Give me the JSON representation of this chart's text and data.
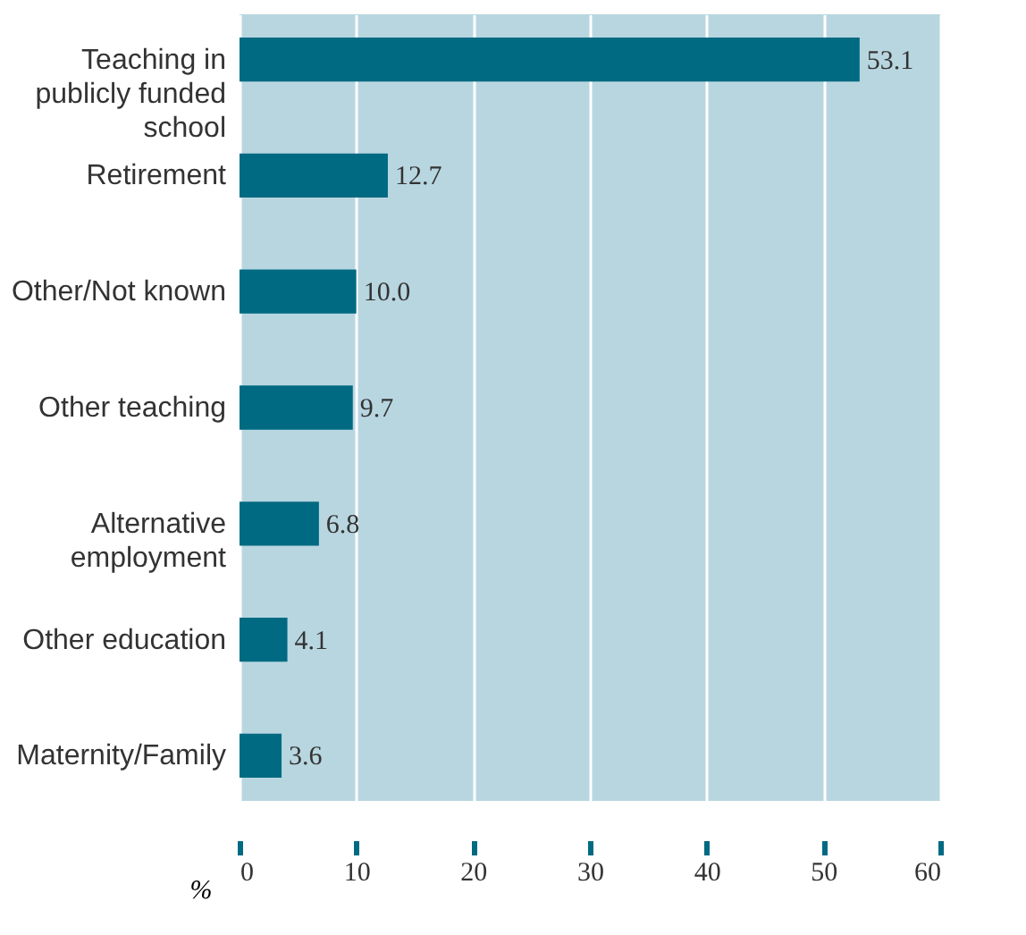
{
  "chart_data": {
    "type": "bar",
    "orientation": "horizontal",
    "xlabel": "%",
    "categories": [
      "Teaching in publicly funded school",
      "Retirement",
      "Other/Not known",
      "Other teaching",
      "Alternative employment",
      "Other education",
      "Maternity/Family"
    ],
    "values": [
      53.1,
      12.7,
      10.0,
      9.7,
      6.8,
      4.1,
      3.6
    ],
    "value_labels": [
      "53.1",
      "12.7",
      "10.0",
      "9.7",
      "6.8",
      "4.1",
      "3.6"
    ],
    "color": "#006a82",
    "xlim": [
      0,
      60
    ],
    "xticks": [
      0,
      10,
      20,
      30,
      40,
      50,
      60
    ],
    "grid": "x"
  }
}
